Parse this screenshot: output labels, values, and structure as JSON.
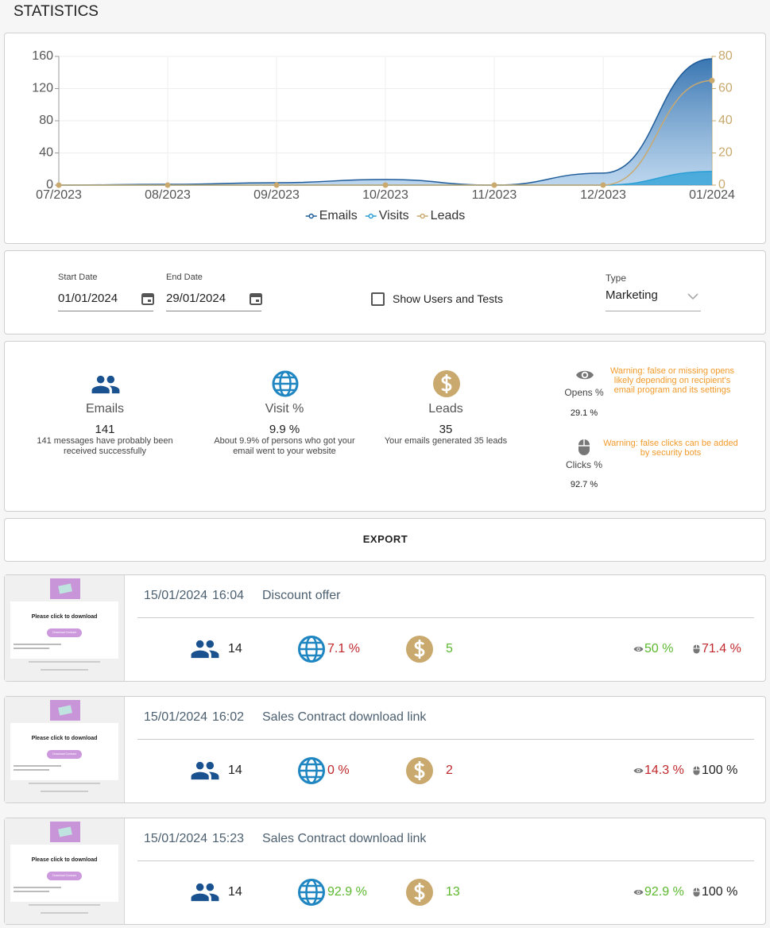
{
  "header": {
    "title": "STATISTICS"
  },
  "chart_data": {
    "type": "area",
    "x": [
      "07/2023",
      "08/2023",
      "09/2023",
      "10/2023",
      "11/2023",
      "12/2023",
      "01/2024"
    ],
    "series": [
      {
        "name": "Emails",
        "color": "#1f5c99",
        "area": true,
        "markers": false,
        "values": [
          0,
          1,
          3,
          7,
          0,
          15,
          157
        ]
      },
      {
        "name": "Visits",
        "color": "#2a9fd6",
        "area": true,
        "markers": false,
        "values": [
          0,
          0,
          0,
          0,
          0,
          0,
          17
        ]
      },
      {
        "name": "Leads",
        "color": "#c9a96e",
        "area": false,
        "markers": true,
        "axis": "y2",
        "values": [
          0,
          0,
          0,
          0,
          0,
          0,
          65
        ]
      }
    ],
    "ylim": [
      0,
      160
    ],
    "yticks": [
      0,
      40,
      80,
      120,
      160
    ],
    "y2lim": [
      0,
      80
    ],
    "y2ticks": [
      0,
      20,
      40,
      60,
      80
    ],
    "grid": true,
    "legend": "bottom"
  },
  "filters": {
    "start_label": "Start Date",
    "start_value": "01/01/2024",
    "end_label": "End Date",
    "end_value": "29/01/2024",
    "checkbox_label": "Show Users and Tests",
    "type_label": "Type",
    "type_value": "Marketing"
  },
  "summary": {
    "emails": {
      "label": "Emails",
      "value": "141",
      "note": "141 messages have probably been received successfully"
    },
    "visits": {
      "label": "Visit %",
      "value": "9.9 %",
      "note": "About 9.9% of persons who got your email went to your website"
    },
    "leads": {
      "label": "Leads",
      "value": "35",
      "note": "Your emails generated 35 leads"
    },
    "opens": {
      "label": "Opens %",
      "value": "29.1 %",
      "warning": "Warning: false or missing opens likely depending on recipient's email program and its settings"
    },
    "clicks": {
      "label": "Clicks %",
      "value": "92.7 %",
      "warning": "Warning: false clicks can be added by security bots"
    }
  },
  "export": "EXPORT",
  "thumbnail": {
    "heading": "Please click to download",
    "button": "Download Contract"
  },
  "campaigns": [
    {
      "date": "15/01/2024",
      "time": "16:04",
      "name": "Discount offer",
      "emails": "14",
      "visits": "7.1 %",
      "visits_color": "#c0282d",
      "leads": "5",
      "leads_color": "#5cb82e",
      "opens": "50 %",
      "opens_color": "#5cb82e",
      "clicks": "71.4 %",
      "clicks_color": "#c0282d"
    },
    {
      "date": "15/01/2024",
      "time": "16:02",
      "name": "Sales Contract download link",
      "emails": "14",
      "visits": "0 %",
      "visits_color": "#c0282d",
      "leads": "2",
      "leads_color": "#c0282d",
      "opens": "14.3 %",
      "opens_color": "#c0282d",
      "clicks": "100 %",
      "clicks_color": "#222222"
    },
    {
      "date": "15/01/2024",
      "time": "15:23",
      "name": "Sales Contract download link",
      "emails": "14",
      "visits": "92.9 %",
      "visits_color": "#5cb82e",
      "leads": "13",
      "leads_color": "#5cb82e",
      "opens": "92.9 %",
      "opens_color": "#5cb82e",
      "clicks": "100 %",
      "clicks_color": "#222222"
    }
  ]
}
